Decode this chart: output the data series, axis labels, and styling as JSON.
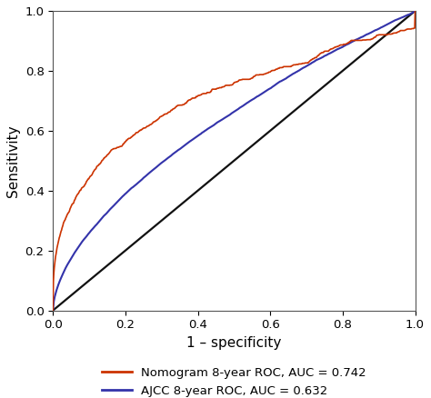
{
  "title": "",
  "xlabel": "1 – specificity",
  "ylabel": "Sensitivity",
  "xlim": [
    0.0,
    1.0
  ],
  "ylim": [
    0.0,
    1.0
  ],
  "xticks": [
    0.0,
    0.2,
    0.4,
    0.6,
    0.8,
    1.0
  ],
  "yticks": [
    0.0,
    0.2,
    0.4,
    0.6,
    0.8,
    1.0
  ],
  "diagonal_color": "#111111",
  "nomogram_color": "#cc3300",
  "ajcc_color": "#3333aa",
  "nomogram_auc": 0.742,
  "ajcc_auc": 0.632,
  "nomogram_label": "Nomogram 8-year ROC, AUC = 0.742",
  "ajcc_label": "AJCC 8-year ROC, AUC = 0.632",
  "background_color": "#ffffff",
  "nomogram_linewidth": 1.2,
  "ajcc_linewidth": 1.5,
  "diag_linewidth": 1.6,
  "legend_fontsize": 9.5,
  "axis_fontsize": 11,
  "tick_fontsize": 9.5
}
